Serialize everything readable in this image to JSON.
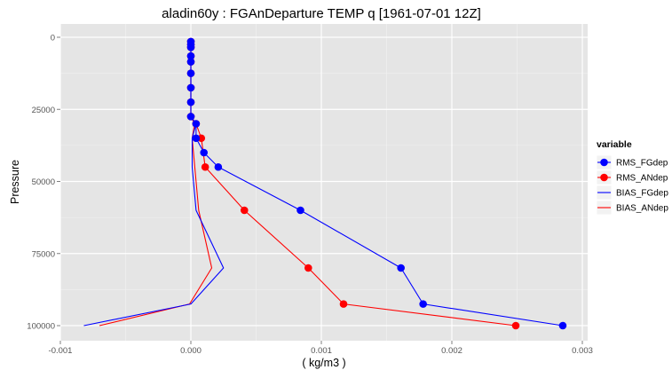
{
  "chart_data": {
    "type": "line",
    "title": "aladin60y : FGAnDeparture TEMP q [1961-07-01 12Z]",
    "xlabel": "( kg/m3 )",
    "ylabel": "Pressure",
    "xlim": [
      -0.001,
      0.003
    ],
    "ylim": [
      0,
      100000
    ],
    "y_reversed": true,
    "grid": true,
    "x_ticks": [
      -0.001,
      0.0,
      0.001,
      0.002,
      0.003
    ],
    "x_tick_labels": [
      "-0.001",
      "0.000",
      "0.001",
      "0.002",
      "0.003"
    ],
    "y_ticks": [
      0,
      25000,
      50000,
      75000,
      100000
    ],
    "y_tick_labels": [
      "0",
      "25000",
      "50000",
      "75000",
      "100000"
    ],
    "legend": {
      "title": "variable",
      "position": "right"
    },
    "series": [
      {
        "name": "RMS_FGdep",
        "color": "#0000ff",
        "style": "line+points",
        "points": [
          [
            0.0,
            1500
          ],
          [
            0.0,
            2500
          ],
          [
            0.0,
            3500
          ],
          [
            0.0,
            6500
          ],
          [
            0.0,
            8500
          ],
          [
            0.0,
            12500
          ],
          [
            0.0,
            17500
          ],
          [
            0.0,
            22500
          ],
          [
            0.0,
            27500
          ],
          [
            4e-05,
            30000
          ],
          [
            4e-05,
            35000
          ],
          [
            0.0001,
            40000
          ],
          [
            0.00021,
            45000
          ],
          [
            0.00084,
            60000
          ],
          [
            0.00161,
            80000
          ],
          [
            0.00178,
            92500
          ],
          [
            0.00285,
            100000
          ]
        ]
      },
      {
        "name": "RMS_ANdep",
        "color": "#ff0000",
        "style": "line+points",
        "points": [
          [
            0.0,
            1500
          ],
          [
            0.0,
            2500
          ],
          [
            0.0,
            3500
          ],
          [
            0.0,
            6500
          ],
          [
            0.0,
            8500
          ],
          [
            0.0,
            12500
          ],
          [
            0.0,
            17500
          ],
          [
            0.0,
            22500
          ],
          [
            0.0,
            27500
          ],
          [
            4e-05,
            30000
          ],
          [
            8e-05,
            35000
          ],
          [
            0.00011,
            45000
          ],
          [
            0.00041,
            60000
          ],
          [
            0.0009,
            80000
          ],
          [
            0.00117,
            92500
          ],
          [
            0.00249,
            100000
          ]
        ]
      },
      {
        "name": "BIAS_FGdep",
        "color": "#0000ff",
        "style": "line",
        "points": [
          [
            0.0,
            1500
          ],
          [
            0.0,
            2500
          ],
          [
            0.0,
            3500
          ],
          [
            0.0,
            6500
          ],
          [
            0.0,
            8500
          ],
          [
            0.0,
            12500
          ],
          [
            0.0,
            17500
          ],
          [
            0.0,
            22500
          ],
          [
            0.0,
            27500
          ],
          [
            4e-05,
            30000
          ],
          [
            1e-05,
            35000
          ],
          [
            1e-05,
            45000
          ],
          [
            4e-05,
            60000
          ],
          [
            0.00025,
            80000
          ],
          [
            0.0,
            92500
          ],
          [
            -0.00082,
            100000
          ]
        ]
      },
      {
        "name": "BIAS_ANdep",
        "color": "#ff0000",
        "style": "line",
        "points": [
          [
            0.0,
            1500
          ],
          [
            0.0,
            2500
          ],
          [
            0.0,
            3500
          ],
          [
            0.0,
            6500
          ],
          [
            0.0,
            8500
          ],
          [
            0.0,
            12500
          ],
          [
            0.0,
            17500
          ],
          [
            0.0,
            22500
          ],
          [
            0.0,
            27500
          ],
          [
            3e-05,
            30000
          ],
          [
            1e-05,
            35000
          ],
          [
            3e-05,
            45000
          ],
          [
            6e-05,
            60000
          ],
          [
            0.00016,
            80000
          ],
          [
            -1e-05,
            92500
          ],
          [
            -0.0007,
            100000
          ]
        ]
      }
    ]
  }
}
